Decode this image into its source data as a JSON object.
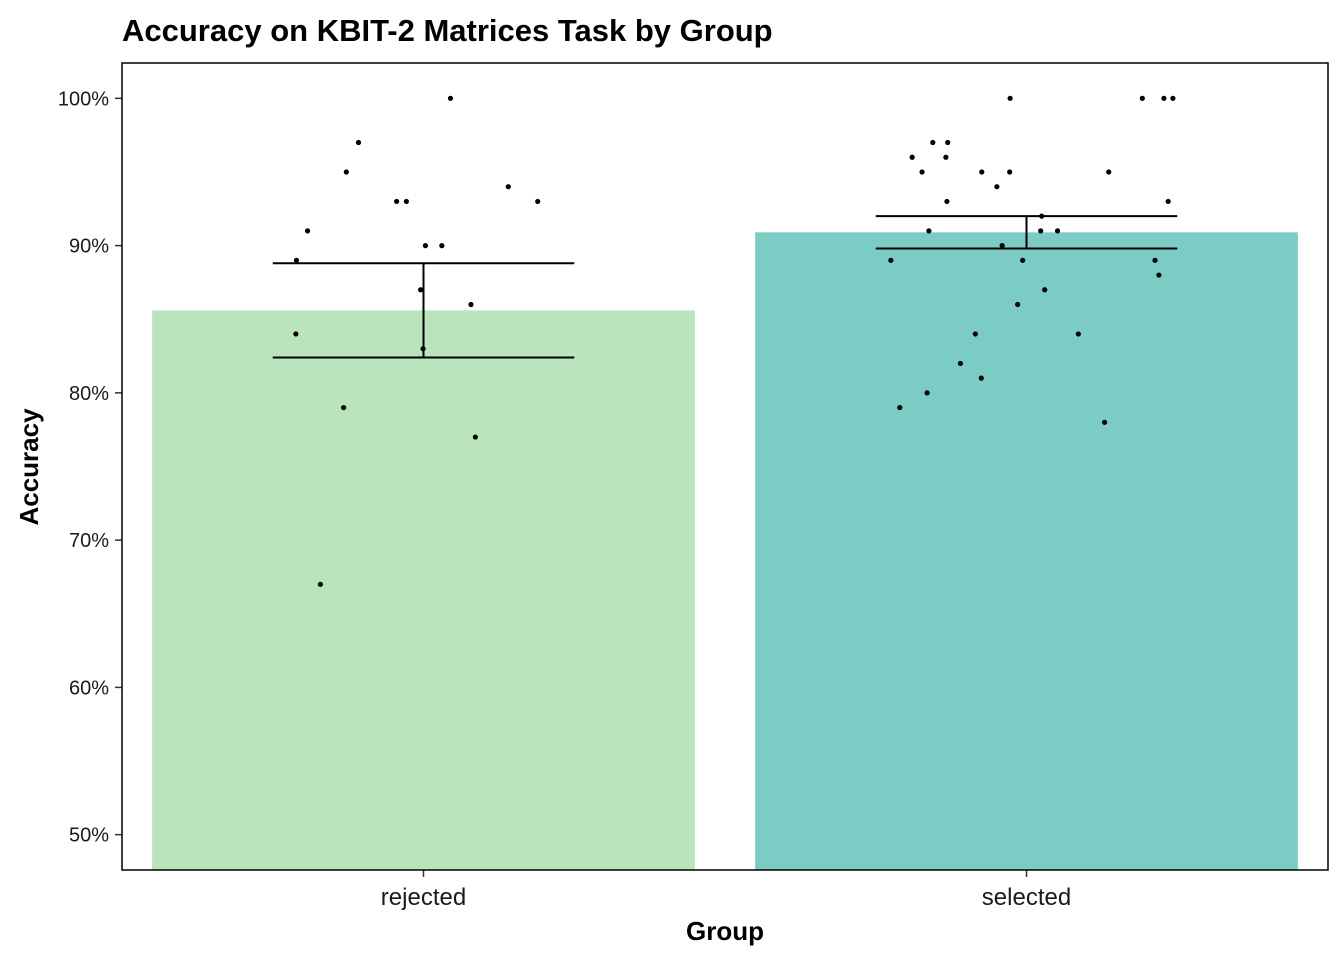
{
  "chart_data": {
    "type": "bar",
    "title": "Accuracy on KBIT-2 Matrices Task by Group",
    "xlabel": "Group",
    "ylabel": "Accuracy",
    "categories": [
      "rejected",
      "selected"
    ],
    "values": [
      85.6,
      90.9
    ],
    "error_bars": [
      {
        "category": "rejected",
        "lower": 82.4,
        "upper": 88.8
      },
      {
        "category": "selected",
        "lower": 89.8,
        "upper": 92.0
      }
    ],
    "bar_colors": [
      "#bae4bc",
      "#7bccc4"
    ],
    "points": {
      "rejected": [
        87,
        90,
        91,
        95,
        93,
        90,
        89,
        93,
        100,
        93,
        97,
        94,
        86,
        84,
        83,
        79,
        77,
        67
      ],
      "selected": [
        87,
        89,
        91,
        89,
        88,
        93,
        96,
        95,
        100,
        97,
        90,
        92,
        84,
        82,
        80,
        100,
        100,
        96,
        91,
        84,
        95,
        95,
        95,
        81,
        79,
        89,
        97,
        100,
        86,
        93,
        91,
        94,
        78
      ]
    },
    "y_ticks": [
      "50%",
      "60%",
      "70%",
      "80%",
      "90%",
      "100%"
    ],
    "y_tick_values": [
      50,
      60,
      70,
      80,
      90,
      100
    ],
    "ylim": [
      47.6,
      102.4
    ],
    "grid": false,
    "legend": "none"
  }
}
